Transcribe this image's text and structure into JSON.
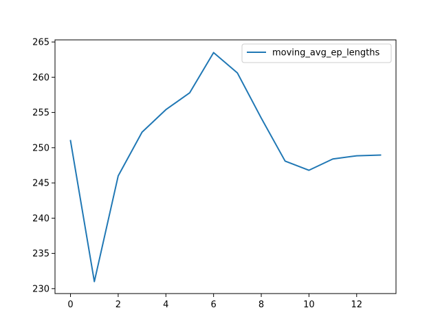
{
  "chart_data": {
    "type": "line",
    "title": "",
    "xlabel": "",
    "ylabel": "",
    "xlim": [
      -0.65,
      13.65
    ],
    "ylim": [
      229.3,
      265.3
    ],
    "xticks": [
      0,
      2,
      4,
      6,
      8,
      10,
      12
    ],
    "yticks": [
      230,
      235,
      240,
      245,
      250,
      255,
      260,
      265
    ],
    "grid": false,
    "legend_position": "upper right",
    "series": [
      {
        "name": "moving_avg_ep_lengths",
        "color": "#1f77b4",
        "x": [
          0,
          1,
          2,
          3,
          4,
          5,
          6,
          7,
          8,
          9,
          10,
          11,
          12,
          13
        ],
        "values": [
          251.0,
          231.0,
          246.0,
          252.2,
          255.4,
          257.8,
          263.5,
          260.6,
          254.2,
          248.1,
          246.8,
          248.4,
          248.85,
          248.95
        ]
      }
    ]
  }
}
